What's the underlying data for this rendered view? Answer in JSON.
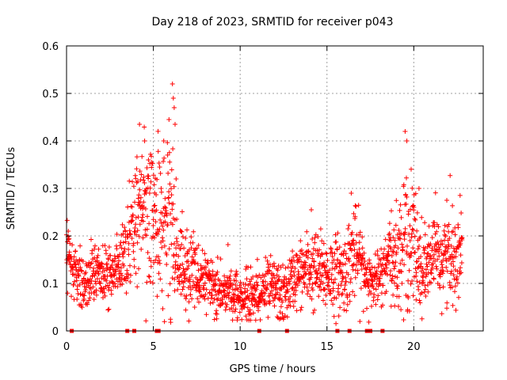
{
  "chart_data": {
    "type": "scatter",
    "title": "Day 218 of 2023, SRMTID for receiver p043",
    "xlabel": "GPS time / hours",
    "ylabel": "SRMTID / TECUs",
    "xlim": [
      0,
      24
    ],
    "ylim": [
      0,
      0.6
    ],
    "x_ticks": [
      0,
      5,
      10,
      15,
      20
    ],
    "x_tick_labels": [
      "0",
      "5",
      "10",
      "15",
      "20"
    ],
    "y_ticks": [
      0,
      0.1,
      0.2,
      0.3,
      0.4,
      0.5,
      0.6
    ],
    "y_tick_labels": [
      "0",
      "0.1",
      "0.2",
      "0.3",
      "0.4",
      "0.5",
      "0.6"
    ],
    "grid": true,
    "marker": "plus",
    "color": "#ff0000",
    "series": [
      {
        "name": "SRMTID",
        "profile": [
          [
            0.0,
            0.16,
            0.04
          ],
          [
            0.5,
            0.12,
            0.03
          ],
          [
            1.0,
            0.1,
            0.025
          ],
          [
            1.5,
            0.12,
            0.03
          ],
          [
            2.0,
            0.12,
            0.03
          ],
          [
            2.5,
            0.12,
            0.03
          ],
          [
            3.0,
            0.13,
            0.03
          ],
          [
            3.5,
            0.18,
            0.05
          ],
          [
            4.0,
            0.25,
            0.07
          ],
          [
            4.5,
            0.26,
            0.08
          ],
          [
            5.0,
            0.24,
            0.08
          ],
          [
            5.5,
            0.22,
            0.09
          ],
          [
            6.0,
            0.21,
            0.1
          ],
          [
            6.5,
            0.15,
            0.05
          ],
          [
            7.0,
            0.12,
            0.04
          ],
          [
            8.0,
            0.11,
            0.03
          ],
          [
            9.0,
            0.085,
            0.025
          ],
          [
            10.0,
            0.07,
            0.025
          ],
          [
            11.0,
            0.08,
            0.03
          ],
          [
            12.0,
            0.09,
            0.03
          ],
          [
            12.5,
            0.07,
            0.03
          ],
          [
            13.0,
            0.11,
            0.03
          ],
          [
            14.0,
            0.13,
            0.04
          ],
          [
            15.0,
            0.12,
            0.04
          ],
          [
            16.0,
            0.12,
            0.04
          ],
          [
            16.5,
            0.17,
            0.05
          ],
          [
            17.0,
            0.14,
            0.04
          ],
          [
            17.5,
            0.1,
            0.03
          ],
          [
            18.0,
            0.11,
            0.03
          ],
          [
            18.5,
            0.14,
            0.04
          ],
          [
            19.0,
            0.15,
            0.05
          ],
          [
            19.5,
            0.2,
            0.07
          ],
          [
            20.0,
            0.18,
            0.07
          ],
          [
            20.5,
            0.13,
            0.04
          ],
          [
            21.0,
            0.15,
            0.04
          ],
          [
            22.0,
            0.16,
            0.05
          ],
          [
            22.8,
            0.16,
            0.05
          ]
        ],
        "peaks": [
          {
            "x": 4.2,
            "y": 0.435
          },
          {
            "x": 4.5,
            "y": 0.4
          },
          {
            "x": 5.6,
            "y": 0.4
          },
          {
            "x": 5.9,
            "y": 0.445
          },
          {
            "x": 6.1,
            "y": 0.52
          },
          {
            "x": 6.15,
            "y": 0.49
          },
          {
            "x": 6.2,
            "y": 0.47
          },
          {
            "x": 6.25,
            "y": 0.435
          },
          {
            "x": 19.5,
            "y": 0.42
          },
          {
            "x": 19.6,
            "y": 0.4
          },
          {
            "x": 16.4,
            "y": 0.29
          },
          {
            "x": 14.1,
            "y": 0.255
          },
          {
            "x": 21.9,
            "y": 0.275
          },
          {
            "x": 0.1,
            "y": 0.21
          },
          {
            "x": 20.3,
            "y": 0.3
          }
        ],
        "zeros": [
          0.3,
          3.5,
          3.9,
          5.2,
          5.3,
          11.1,
          12.7,
          15.6,
          16.3,
          17.3,
          17.5,
          18.2
        ]
      }
    ]
  }
}
